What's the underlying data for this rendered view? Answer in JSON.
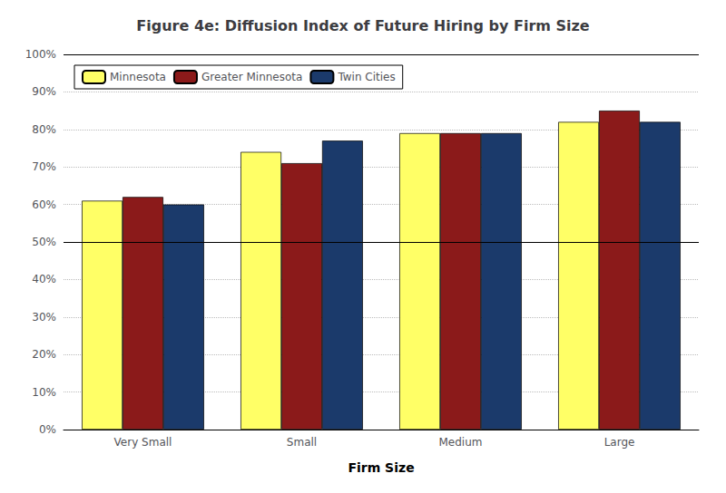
{
  "chart_data": {
    "type": "bar",
    "title": "Figure 4e: Diffusion Index of Future Hiring by Firm Size",
    "xlabel": "Firm Size",
    "categories": [
      "Very Small",
      "Small",
      "Medium",
      "Large"
    ],
    "series": [
      {
        "name": "Minnesota",
        "color": "#FFFF66",
        "values": [
          0.61,
          0.74,
          0.79,
          0.82
        ]
      },
      {
        "name": "Greater Minnesota",
        "color": "#8B1A1A",
        "values": [
          0.62,
          0.71,
          0.79,
          0.85
        ]
      },
      {
        "name": "Twin Cities",
        "color": "#1B3A6B",
        "values": [
          0.6,
          0.77,
          0.79,
          0.82
        ]
      }
    ],
    "ylim": [
      0,
      1.0
    ],
    "yticks": [
      {
        "value": 0,
        "label": "0%"
      },
      {
        "value": 0.1,
        "label": "10%"
      },
      {
        "value": 0.2,
        "label": "20%"
      },
      {
        "value": 0.3,
        "label": "30%"
      },
      {
        "value": 0.4,
        "label": "40%"
      },
      {
        "value": 0.5,
        "label": "50%"
      },
      {
        "value": 0.6,
        "label": "60%"
      },
      {
        "value": 0.7,
        "label": "70%"
      },
      {
        "value": 0.8,
        "label": "80%"
      },
      {
        "value": 0.9,
        "label": "90%"
      },
      {
        "value": 1.0,
        "label": "100%"
      }
    ],
    "hlines": [
      0.5,
      1.0
    ],
    "grid": true,
    "legend": "upper left"
  }
}
